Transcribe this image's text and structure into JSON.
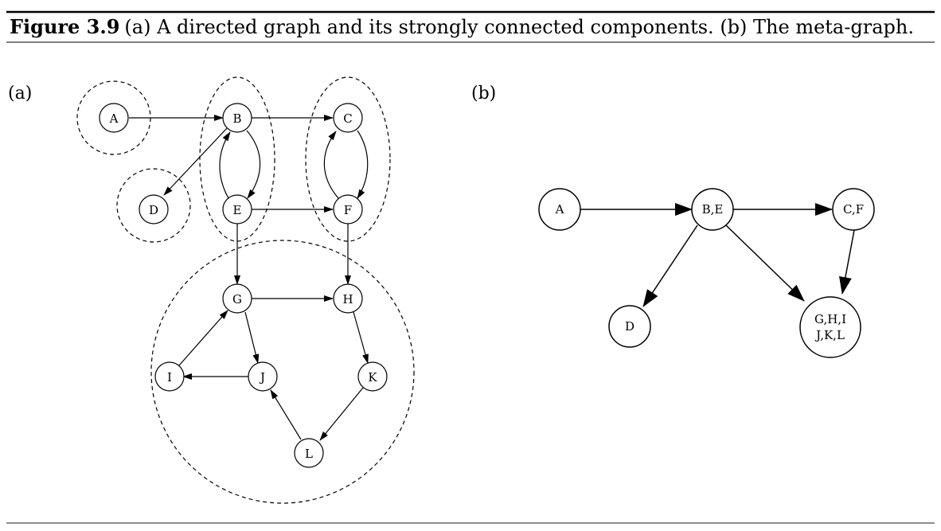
{
  "caption": {
    "label": "Figure 3.9",
    "text": "(a) A directed graph and its strongly connected components. (b) The meta-graph."
  },
  "panel_a": {
    "label": "(a)",
    "nodes": [
      "A",
      "B",
      "C",
      "D",
      "E",
      "F",
      "G",
      "H",
      "I",
      "J",
      "K",
      "L"
    ],
    "edges": [
      [
        "A",
        "B"
      ],
      [
        "B",
        "C"
      ],
      [
        "B",
        "D"
      ],
      [
        "B",
        "E"
      ],
      [
        "E",
        "B"
      ],
      [
        "E",
        "F"
      ],
      [
        "C",
        "F"
      ],
      [
        "F",
        "C"
      ],
      [
        "E",
        "G"
      ],
      [
        "F",
        "H"
      ],
      [
        "G",
        "H"
      ],
      [
        "G",
        "J"
      ],
      [
        "I",
        "G"
      ],
      [
        "J",
        "I"
      ],
      [
        "H",
        "K"
      ],
      [
        "K",
        "L"
      ],
      [
        "L",
        "J"
      ]
    ],
    "components": [
      [
        "A"
      ],
      [
        "D"
      ],
      [
        "B",
        "E"
      ],
      [
        "C",
        "F"
      ],
      [
        "G",
        "H",
        "I",
        "J",
        "K",
        "L"
      ]
    ]
  },
  "panel_b": {
    "label": "(b)",
    "nodes": [
      "A",
      "B,E",
      "C,F",
      "D",
      "G,H,I\nJ,K,L"
    ],
    "edges": [
      [
        "A",
        "B,E"
      ],
      [
        "B,E",
        "C,F"
      ],
      [
        "B,E",
        "D"
      ],
      [
        "B,E",
        "G,H,I\nJ,K,L"
      ],
      [
        "C,F",
        "G,H,I\nJ,K,L"
      ]
    ]
  },
  "colors": {
    "ink": "#000000",
    "rule": "#333333",
    "background": "#ffffff"
  }
}
